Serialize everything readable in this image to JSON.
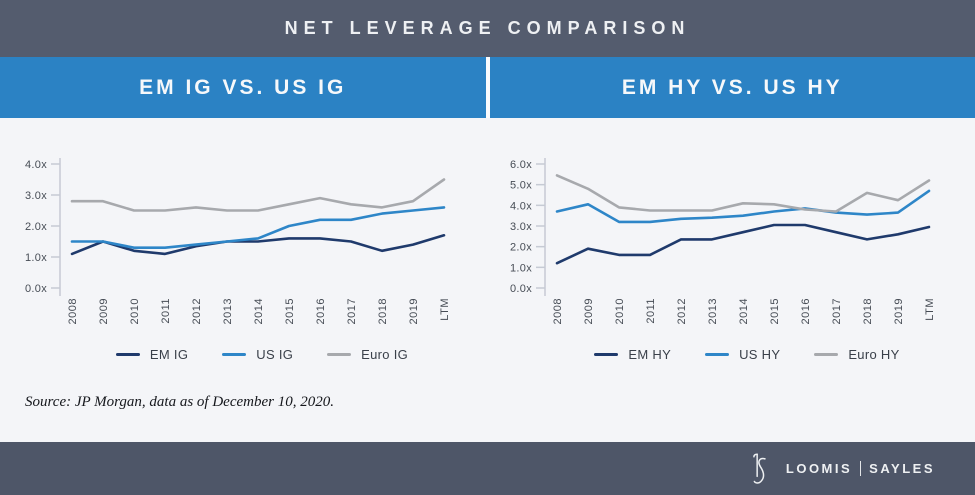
{
  "header": {
    "title": "NET LEVERAGE COMPARISON"
  },
  "panels": [
    {
      "title": "EM IG VS. US IG"
    },
    {
      "title": "EM HY VS. US HY"
    }
  ],
  "colors": {
    "band_blue": "#2b82c4",
    "header_dark": "#545c6e",
    "footer_dark": "#4e5668",
    "background": "#f4f5f8",
    "axis": "#c6cad4"
  },
  "chart_data": [
    {
      "type": "line",
      "title": "EM IG VS. US IG",
      "categories": [
        "2008",
        "2009",
        "2010",
        "2011",
        "2012",
        "2013",
        "2014",
        "2015",
        "2016",
        "2017",
        "2018",
        "2019",
        "LTM"
      ],
      "series": [
        {
          "name": "EM IG",
          "color": "#1f3a6c",
          "values": [
            1.1,
            1.5,
            1.2,
            1.1,
            1.35,
            1.5,
            1.5,
            1.6,
            1.6,
            1.5,
            1.2,
            1.4,
            1.7
          ]
        },
        {
          "name": "US IG",
          "color": "#2e86c8",
          "values": [
            1.5,
            1.5,
            1.3,
            1.3,
            1.4,
            1.5,
            1.6,
            2.0,
            2.2,
            2.2,
            2.4,
            2.5,
            2.6
          ]
        },
        {
          "name": "Euro IG",
          "color": "#a7a9ad",
          "values": [
            2.8,
            2.8,
            2.5,
            2.5,
            2.6,
            2.5,
            2.5,
            2.7,
            2.9,
            2.7,
            2.6,
            2.8,
            3.5
          ]
        }
      ],
      "ylabel": "",
      "xlabel": "",
      "ylim": [
        0,
        4
      ],
      "ytick_step": 1,
      "ytick_suffix": "x",
      "grid": false,
      "legend_position": "bottom"
    },
    {
      "type": "line",
      "title": "EM HY VS. US HY",
      "categories": [
        "2008",
        "2009",
        "2010",
        "2011",
        "2012",
        "2013",
        "2014",
        "2015",
        "2016",
        "2017",
        "2018",
        "2019",
        "LTM"
      ],
      "series": [
        {
          "name": "EM HY",
          "color": "#1f3a6c",
          "values": [
            1.2,
            1.9,
            1.6,
            1.6,
            2.35,
            2.35,
            2.7,
            3.05,
            3.05,
            2.7,
            2.35,
            2.6,
            2.95
          ]
        },
        {
          "name": "US HY",
          "color": "#2e86c8",
          "values": [
            3.7,
            4.05,
            3.2,
            3.2,
            3.35,
            3.4,
            3.5,
            3.7,
            3.85,
            3.65,
            3.55,
            3.65,
            4.7
          ]
        },
        {
          "name": "Euro HY",
          "color": "#a7a9ad",
          "values": [
            5.45,
            4.8,
            3.9,
            3.75,
            3.75,
            3.75,
            4.1,
            4.05,
            3.8,
            3.7,
            4.6,
            4.25,
            5.2
          ]
        }
      ],
      "ylabel": "",
      "xlabel": "",
      "ylim": [
        0,
        6
      ],
      "ytick_step": 1,
      "ytick_suffix": "x",
      "grid": false,
      "legend_position": "bottom"
    }
  ],
  "source": {
    "text": "Source: JP Morgan, data as of December 10, 2020."
  },
  "footer": {
    "brand_left": "LOOMIS",
    "brand_right": "SAYLES",
    "logo": "ls-monogram"
  }
}
